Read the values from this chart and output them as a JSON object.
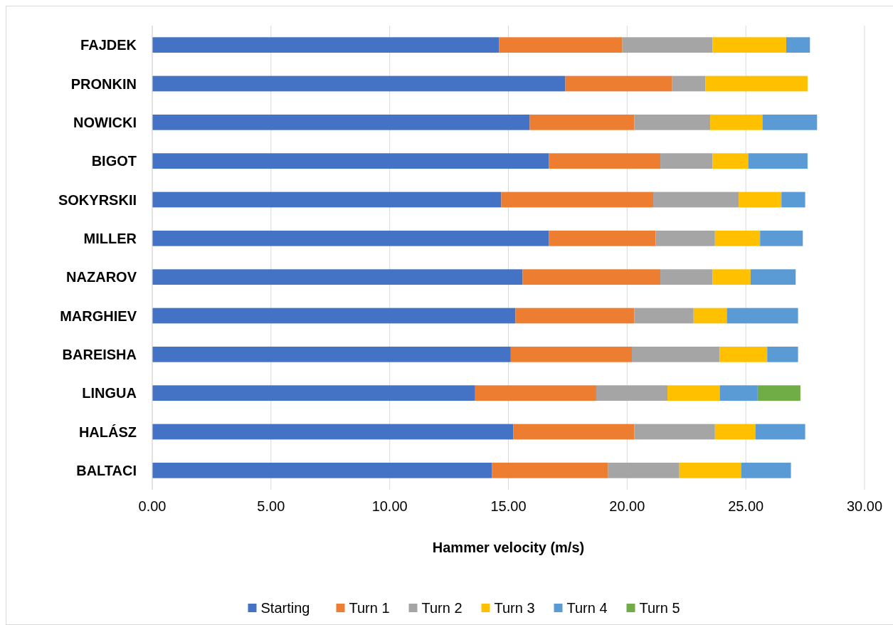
{
  "chart_data": {
    "type": "bar",
    "orientation": "horizontal",
    "stacked": true,
    "xlabel": "Hammer velocity (m/s)",
    "categories": [
      "FAJDEK",
      "PRONKIN",
      "NOWICKI",
      "BIGOT",
      "SOKYRSKII",
      "MILLER",
      "NAZAROV",
      "MARGHIEV",
      "BAREISHA",
      "LINGUA",
      "HALÁSZ",
      "BALTACI"
    ],
    "series": [
      {
        "name": "Starting",
        "color": "#4472c4",
        "values": [
          14.6,
          17.4,
          15.9,
          16.7,
          14.7,
          16.7,
          15.6,
          15.3,
          15.1,
          13.6,
          15.2,
          14.3
        ]
      },
      {
        "name": "Turn 1",
        "color": "#ed7d31",
        "values": [
          5.2,
          4.5,
          4.4,
          4.7,
          6.4,
          4.5,
          5.8,
          5.0,
          5.1,
          5.1,
          5.1,
          4.9
        ]
      },
      {
        "name": "Turn 2",
        "color": "#a5a5a5",
        "values": [
          3.8,
          1.4,
          3.2,
          2.2,
          3.6,
          2.5,
          2.2,
          2.5,
          3.7,
          3.0,
          3.4,
          3.0
        ]
      },
      {
        "name": "Turn 3",
        "color": "#ffc000",
        "values": [
          3.1,
          4.3,
          2.2,
          1.5,
          1.8,
          1.9,
          1.6,
          1.4,
          2.0,
          2.2,
          1.7,
          2.6
        ]
      },
      {
        "name": "Turn 4",
        "color": "#5b9bd5",
        "values": [
          1.0,
          null,
          2.3,
          2.5,
          1.0,
          1.8,
          1.9,
          3.0,
          1.3,
          1.6,
          2.1,
          2.1
        ]
      },
      {
        "name": "Turn 5",
        "color": "#70ad47",
        "values": [
          null,
          null,
          null,
          null,
          null,
          null,
          null,
          null,
          null,
          1.8,
          null,
          null
        ]
      }
    ],
    "xlim": [
      0,
      30
    ],
    "xticks": [
      {
        "value": 0,
        "label": "0.00"
      },
      {
        "value": 5,
        "label": "5.00"
      },
      {
        "value": 10,
        "label": "10.00"
      },
      {
        "value": 15,
        "label": "15.00"
      },
      {
        "value": 20,
        "label": "20.00"
      },
      {
        "value": 25,
        "label": "25.00"
      },
      {
        "value": 30,
        "label": "30.00"
      }
    ],
    "grid": "x",
    "legend": "bottom"
  }
}
